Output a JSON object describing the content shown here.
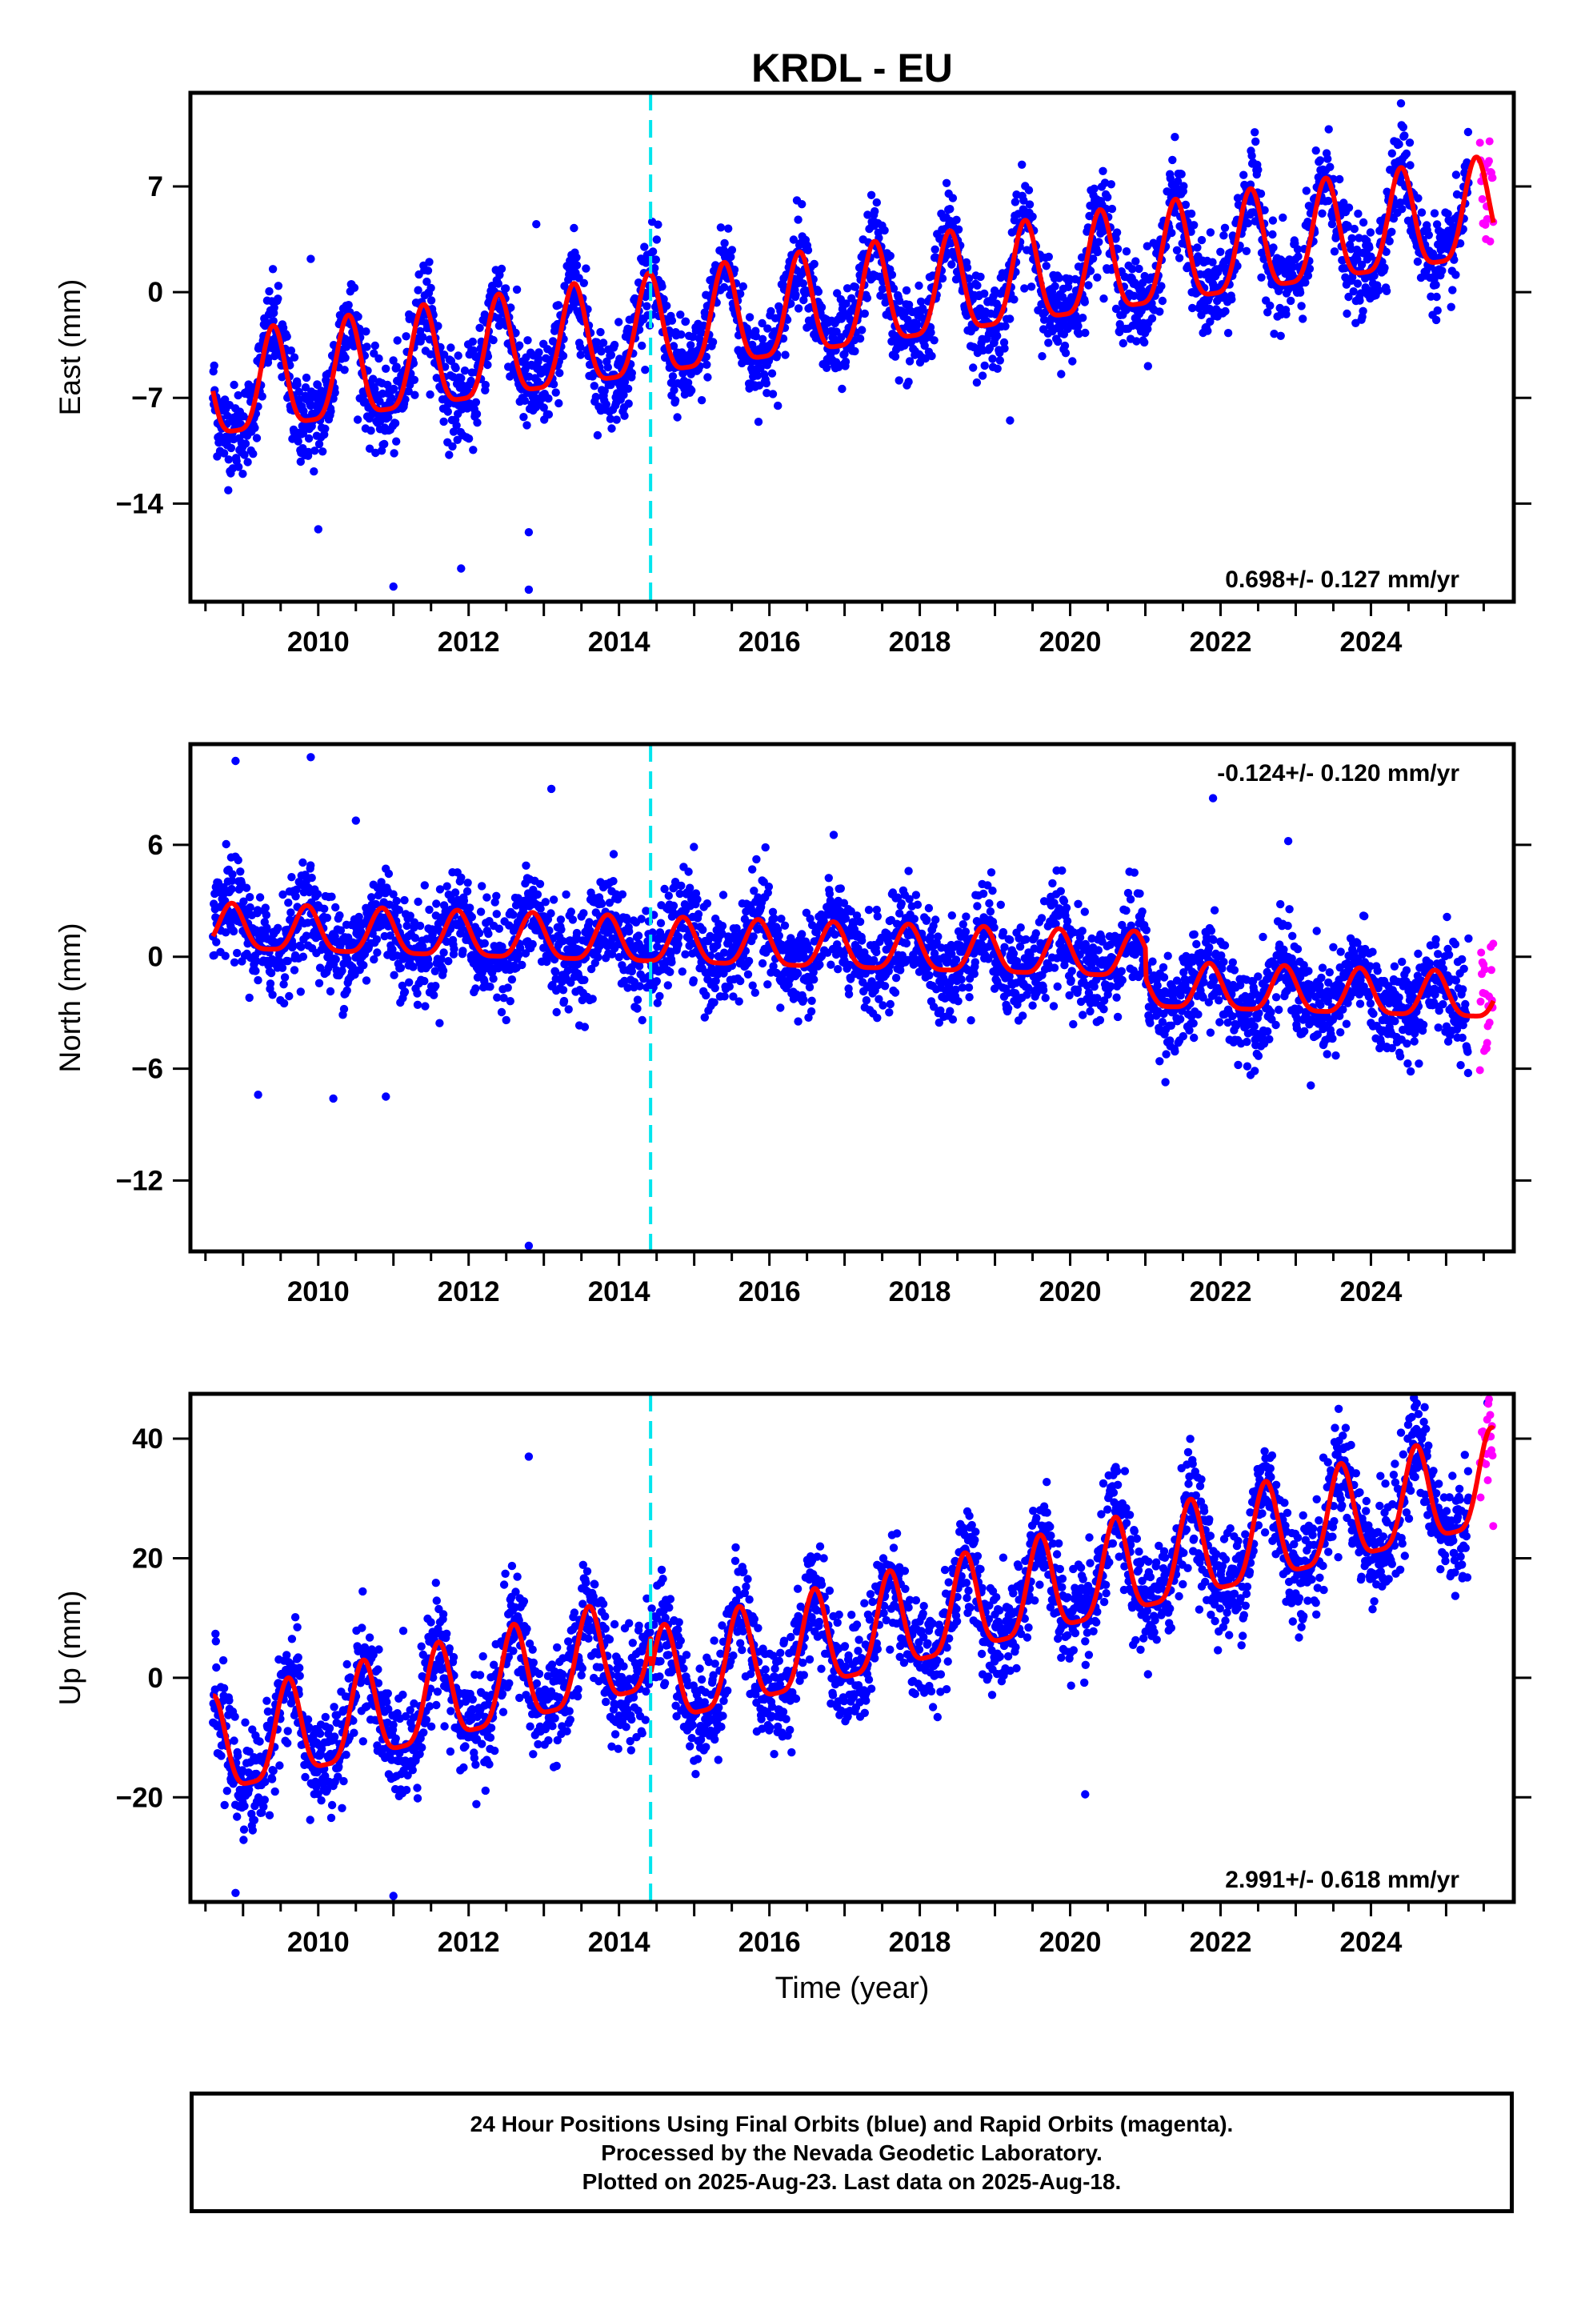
{
  "colors": {
    "final_orbits": "#0000ff",
    "rapid_orbits": "#ff00ff",
    "model": "#ff0000",
    "equipment_change": "#00e5ee"
  },
  "footer": {
    "line1": "24 Hour Positions Using Final Orbits (blue) and Rapid Orbits (magenta).",
    "line2": "Processed by the Nevada Geodetic Laboratory.",
    "line3": "Plotted on 2025-Aug-23. Last data on 2025-Aug-18."
  },
  "chart_data": [
    {
      "type": "scatter",
      "title": "KRDL - EU",
      "ylabel": "East (mm)",
      "xlabel": "",
      "xlim": [
        2008.3,
        2025.9
      ],
      "ylim": [
        -20.5,
        13.2
      ],
      "x_ticks": [
        2010,
        2012,
        2014,
        2016,
        2018,
        2020,
        2022,
        2024
      ],
      "y_ticks": [
        -14,
        -7,
        0,
        7
      ],
      "grid": false,
      "equipment_change_year": 2014.42,
      "rate_label": "0.698+/- 0.127 mm/yr",
      "rate_label_position": "bottom-right",
      "model": {
        "offset": -6.9,
        "rate": 0.698,
        "start": 2008.6,
        "amplitude": 3.3,
        "peak_phase": 0.4
      },
      "final_orbits_range": [
        2008.6,
        2025.3
      ],
      "rapid_orbits_range": [
        2025.45,
        2025.63
      ],
      "noise": 1.5,
      "outliers": [
        [
          2010.0,
          -15.7
        ],
        [
          2011.0,
          -19.5
        ],
        [
          2011.9,
          -18.3
        ],
        [
          2012.8,
          -19.7
        ],
        [
          2012.8,
          -15.9
        ],
        [
          2012.9,
          4.5
        ],
        [
          2009.9,
          2.2
        ],
        [
          2019.2,
          -8.5
        ],
        [
          2022.8,
          -2.9
        ],
        [
          2024.4,
          12.5
        ]
      ]
    },
    {
      "type": "scatter",
      "title": "",
      "ylabel": "North (mm)",
      "xlabel": "",
      "xlim": [
        2008.3,
        2025.9
      ],
      "ylim": [
        -15.8,
        11.4
      ],
      "x_ticks": [
        2010,
        2012,
        2014,
        2016,
        2018,
        2020,
        2022,
        2024
      ],
      "y_ticks": [
        -12,
        -6,
        0,
        6
      ],
      "grid": false,
      "equipment_change_year": 2014.42,
      "rate_label": "-0.124+/- 0.120 mm/yr",
      "rate_label_position": "top-right",
      "model": {
        "offset": 1.4,
        "rate": -0.124,
        "start": 2008.6,
        "amplitude": 1.2,
        "peak_phase": 0.85,
        "step": {
          "year": 2021.0,
          "size": -1.6
        }
      },
      "final_orbits_range": [
        2008.6,
        2025.3
      ],
      "rapid_orbits_range": [
        2025.45,
        2025.63
      ],
      "noise": 1.3,
      "outliers": [
        [
          2008.9,
          10.5
        ],
        [
          2009.9,
          10.7
        ],
        [
          2010.5,
          7.3
        ],
        [
          2013.1,
          9.0
        ],
        [
          2012.8,
          -15.5
        ],
        [
          2009.2,
          -7.4
        ],
        [
          2010.2,
          -7.6
        ],
        [
          2010.9,
          -7.5
        ],
        [
          2021.9,
          8.5
        ],
        [
          2022.9,
          6.2
        ],
        [
          2023.2,
          -6.9
        ]
      ]
    },
    {
      "type": "scatter",
      "title": "",
      "ylabel": "Up (mm)",
      "xlabel": "Time (year)",
      "xlim": [
        2008.3,
        2025.9
      ],
      "ylim": [
        -37.5,
        47.5
      ],
      "x_ticks": [
        2010,
        2012,
        2014,
        2016,
        2018,
        2020,
        2022,
        2024
      ],
      "y_ticks": [
        -20,
        0,
        20,
        40
      ],
      "grid": false,
      "equipment_change_year": 2014.42,
      "rate_label": "2.991+/- 0.618 mm/yr",
      "rate_label_position": "bottom-right",
      "model": {
        "offset": -13.0,
        "rate": 2.991,
        "start": 2008.6,
        "amplitude": 8.0,
        "peak_phase": 0.6,
        "step": {
          "year": 2014.42,
          "size": -6.0
        }
      },
      "final_orbits_range": [
        2008.6,
        2025.3
      ],
      "rapid_orbits_range": [
        2025.45,
        2025.63
      ],
      "noise": 4.5,
      "outliers": [
        [
          2012.8,
          37.0
        ],
        [
          2008.9,
          -36.0
        ],
        [
          2011.0,
          -36.5
        ],
        [
          2020.2,
          -19.5
        ],
        [
          2024.4,
          41.0
        ],
        [
          2025.55,
          46.0
        ]
      ]
    }
  ]
}
